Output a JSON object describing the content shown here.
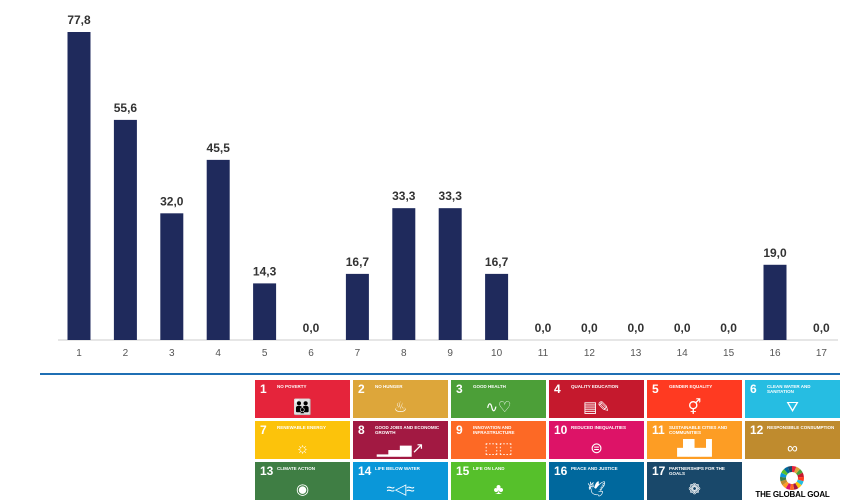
{
  "chart_data": {
    "type": "bar",
    "categories": [
      "1",
      "2",
      "3",
      "4",
      "5",
      "6",
      "7",
      "8",
      "9",
      "10",
      "11",
      "12",
      "13",
      "14",
      "15",
      "16",
      "17"
    ],
    "values": [
      77.8,
      55.6,
      32.0,
      45.5,
      14.3,
      0.0,
      16.7,
      33.3,
      33.3,
      16.7,
      0.0,
      0.0,
      0.0,
      0.0,
      0.0,
      19.0,
      0.0
    ],
    "value_labels": [
      "77,8",
      "55,6",
      "32,0",
      "45,5",
      "14,3",
      "0,0",
      "16,7",
      "33,3",
      "33,3",
      "16,7",
      "0,0",
      "0,0",
      "0,0",
      "0,0",
      "0,0",
      "19,0",
      "0,0"
    ],
    "ylim": [
      0,
      80
    ],
    "grid": false,
    "bar_color": "#1f2a5c",
    "axis_color": "#cccccc"
  },
  "sdg_legend": {
    "tiles": [
      {
        "num": "1",
        "name": "No poverty",
        "color": "#e5243b",
        "icon": "people-icon",
        "glyph": "👪"
      },
      {
        "num": "2",
        "name": "No hunger",
        "color": "#dda63a",
        "icon": "bowl-icon",
        "glyph": "♨"
      },
      {
        "num": "3",
        "name": "Good health",
        "color": "#4c9f38",
        "icon": "heartbeat-icon",
        "glyph": "∿♡"
      },
      {
        "num": "4",
        "name": "Quality education",
        "color": "#c5192d",
        "icon": "book-icon",
        "glyph": "▤✎"
      },
      {
        "num": "5",
        "name": "Gender equality",
        "color": "#ff3a21",
        "icon": "gender-icon",
        "glyph": "⚥"
      },
      {
        "num": "6",
        "name": "Clean water and sanitation",
        "color": "#26bde2",
        "icon": "water-icon",
        "glyph": "⛛"
      },
      {
        "num": "7",
        "name": "Renewable energy",
        "color": "#fcc30b",
        "icon": "sun-icon",
        "glyph": "☼"
      },
      {
        "num": "8",
        "name": "Good jobs and economic growth",
        "color": "#a21942",
        "icon": "growth-chart-icon",
        "glyph": "▁▃▅↗"
      },
      {
        "num": "9",
        "name": "Innovation and infrastructure",
        "color": "#fd6925",
        "icon": "cubes-icon",
        "glyph": "⬚⬚"
      },
      {
        "num": "10",
        "name": "Reduced inequalities",
        "color": "#dd1367",
        "icon": "equals-icon",
        "glyph": "⊜"
      },
      {
        "num": "11",
        "name": "Sustainable cities and communities",
        "color": "#fd9d24",
        "icon": "buildings-icon",
        "glyph": "▟▙▟"
      },
      {
        "num": "12",
        "name": "Responsible consumption",
        "color": "#bf8b2e",
        "icon": "infinity-icon",
        "glyph": "∞"
      },
      {
        "num": "13",
        "name": "Climate action",
        "color": "#3f7e44",
        "icon": "eye-globe-icon",
        "glyph": "◉"
      },
      {
        "num": "14",
        "name": "Life below water",
        "color": "#0a97d9",
        "icon": "fish-icon",
        "glyph": "≈◁≈"
      },
      {
        "num": "15",
        "name": "Life on land",
        "color": "#56c02b",
        "icon": "tree-icon",
        "glyph": "♣"
      },
      {
        "num": "16",
        "name": "Peace and justice",
        "color": "#00689d",
        "icon": "dove-icon",
        "glyph": "🕊"
      },
      {
        "num": "17",
        "name": "Partnerships for the goals",
        "color": "#19486a",
        "icon": "rings-icon",
        "glyph": "❁"
      }
    ],
    "logo_text": "THE GLOBAL GOAL",
    "logo_colors": [
      "#e5243b",
      "#dda63a",
      "#4c9f38",
      "#c5192d",
      "#ff3a21",
      "#26bde2",
      "#fcc30b",
      "#a21942",
      "#fd6925",
      "#dd1367",
      "#fd9d24",
      "#bf8b2e",
      "#3f7e44",
      "#0a97d9",
      "#56c02b",
      "#00689d",
      "#19486a"
    ]
  }
}
